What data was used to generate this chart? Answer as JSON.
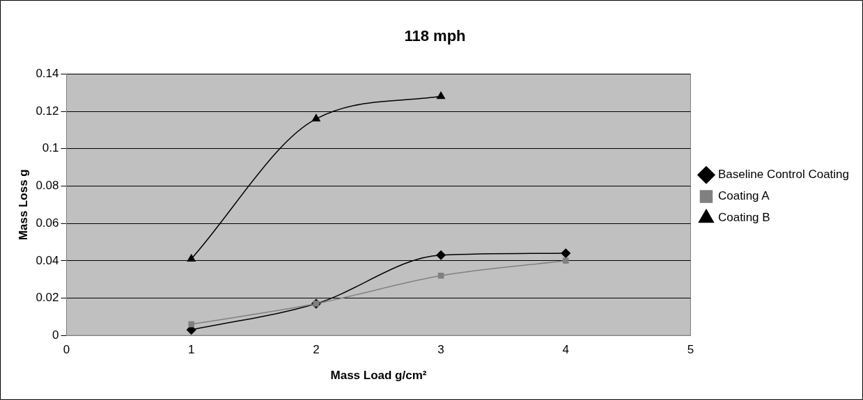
{
  "chart_data": {
    "type": "line",
    "title": "118 mph",
    "xlabel": "Mass Load g/cm²",
    "ylabel": "Mass Loss g",
    "xlim": [
      0,
      5
    ],
    "xticks": [
      0,
      1,
      2,
      3,
      4,
      5
    ],
    "ylim": [
      0,
      0.14
    ],
    "yticks": [
      0,
      0.02,
      0.04,
      0.06,
      0.08,
      0.1,
      0.12,
      0.14
    ],
    "grid": "y",
    "legend": "right",
    "line_style": "solid",
    "x": [
      1,
      2,
      3,
      4
    ],
    "series": [
      {
        "name": "Baseline Control Coating",
        "color": "#000000",
        "marker": "diamond",
        "values": [
          0.003,
          0.017,
          0.043,
          0.044
        ]
      },
      {
        "name": "Coating A",
        "color": "#808080",
        "marker": "square",
        "values": [
          0.006,
          0.017,
          0.032,
          0.04
        ]
      },
      {
        "name": "Coating B",
        "color": "#000000",
        "marker": "triangle",
        "values": [
          0.041,
          0.116,
          0.128,
          null
        ]
      }
    ]
  }
}
